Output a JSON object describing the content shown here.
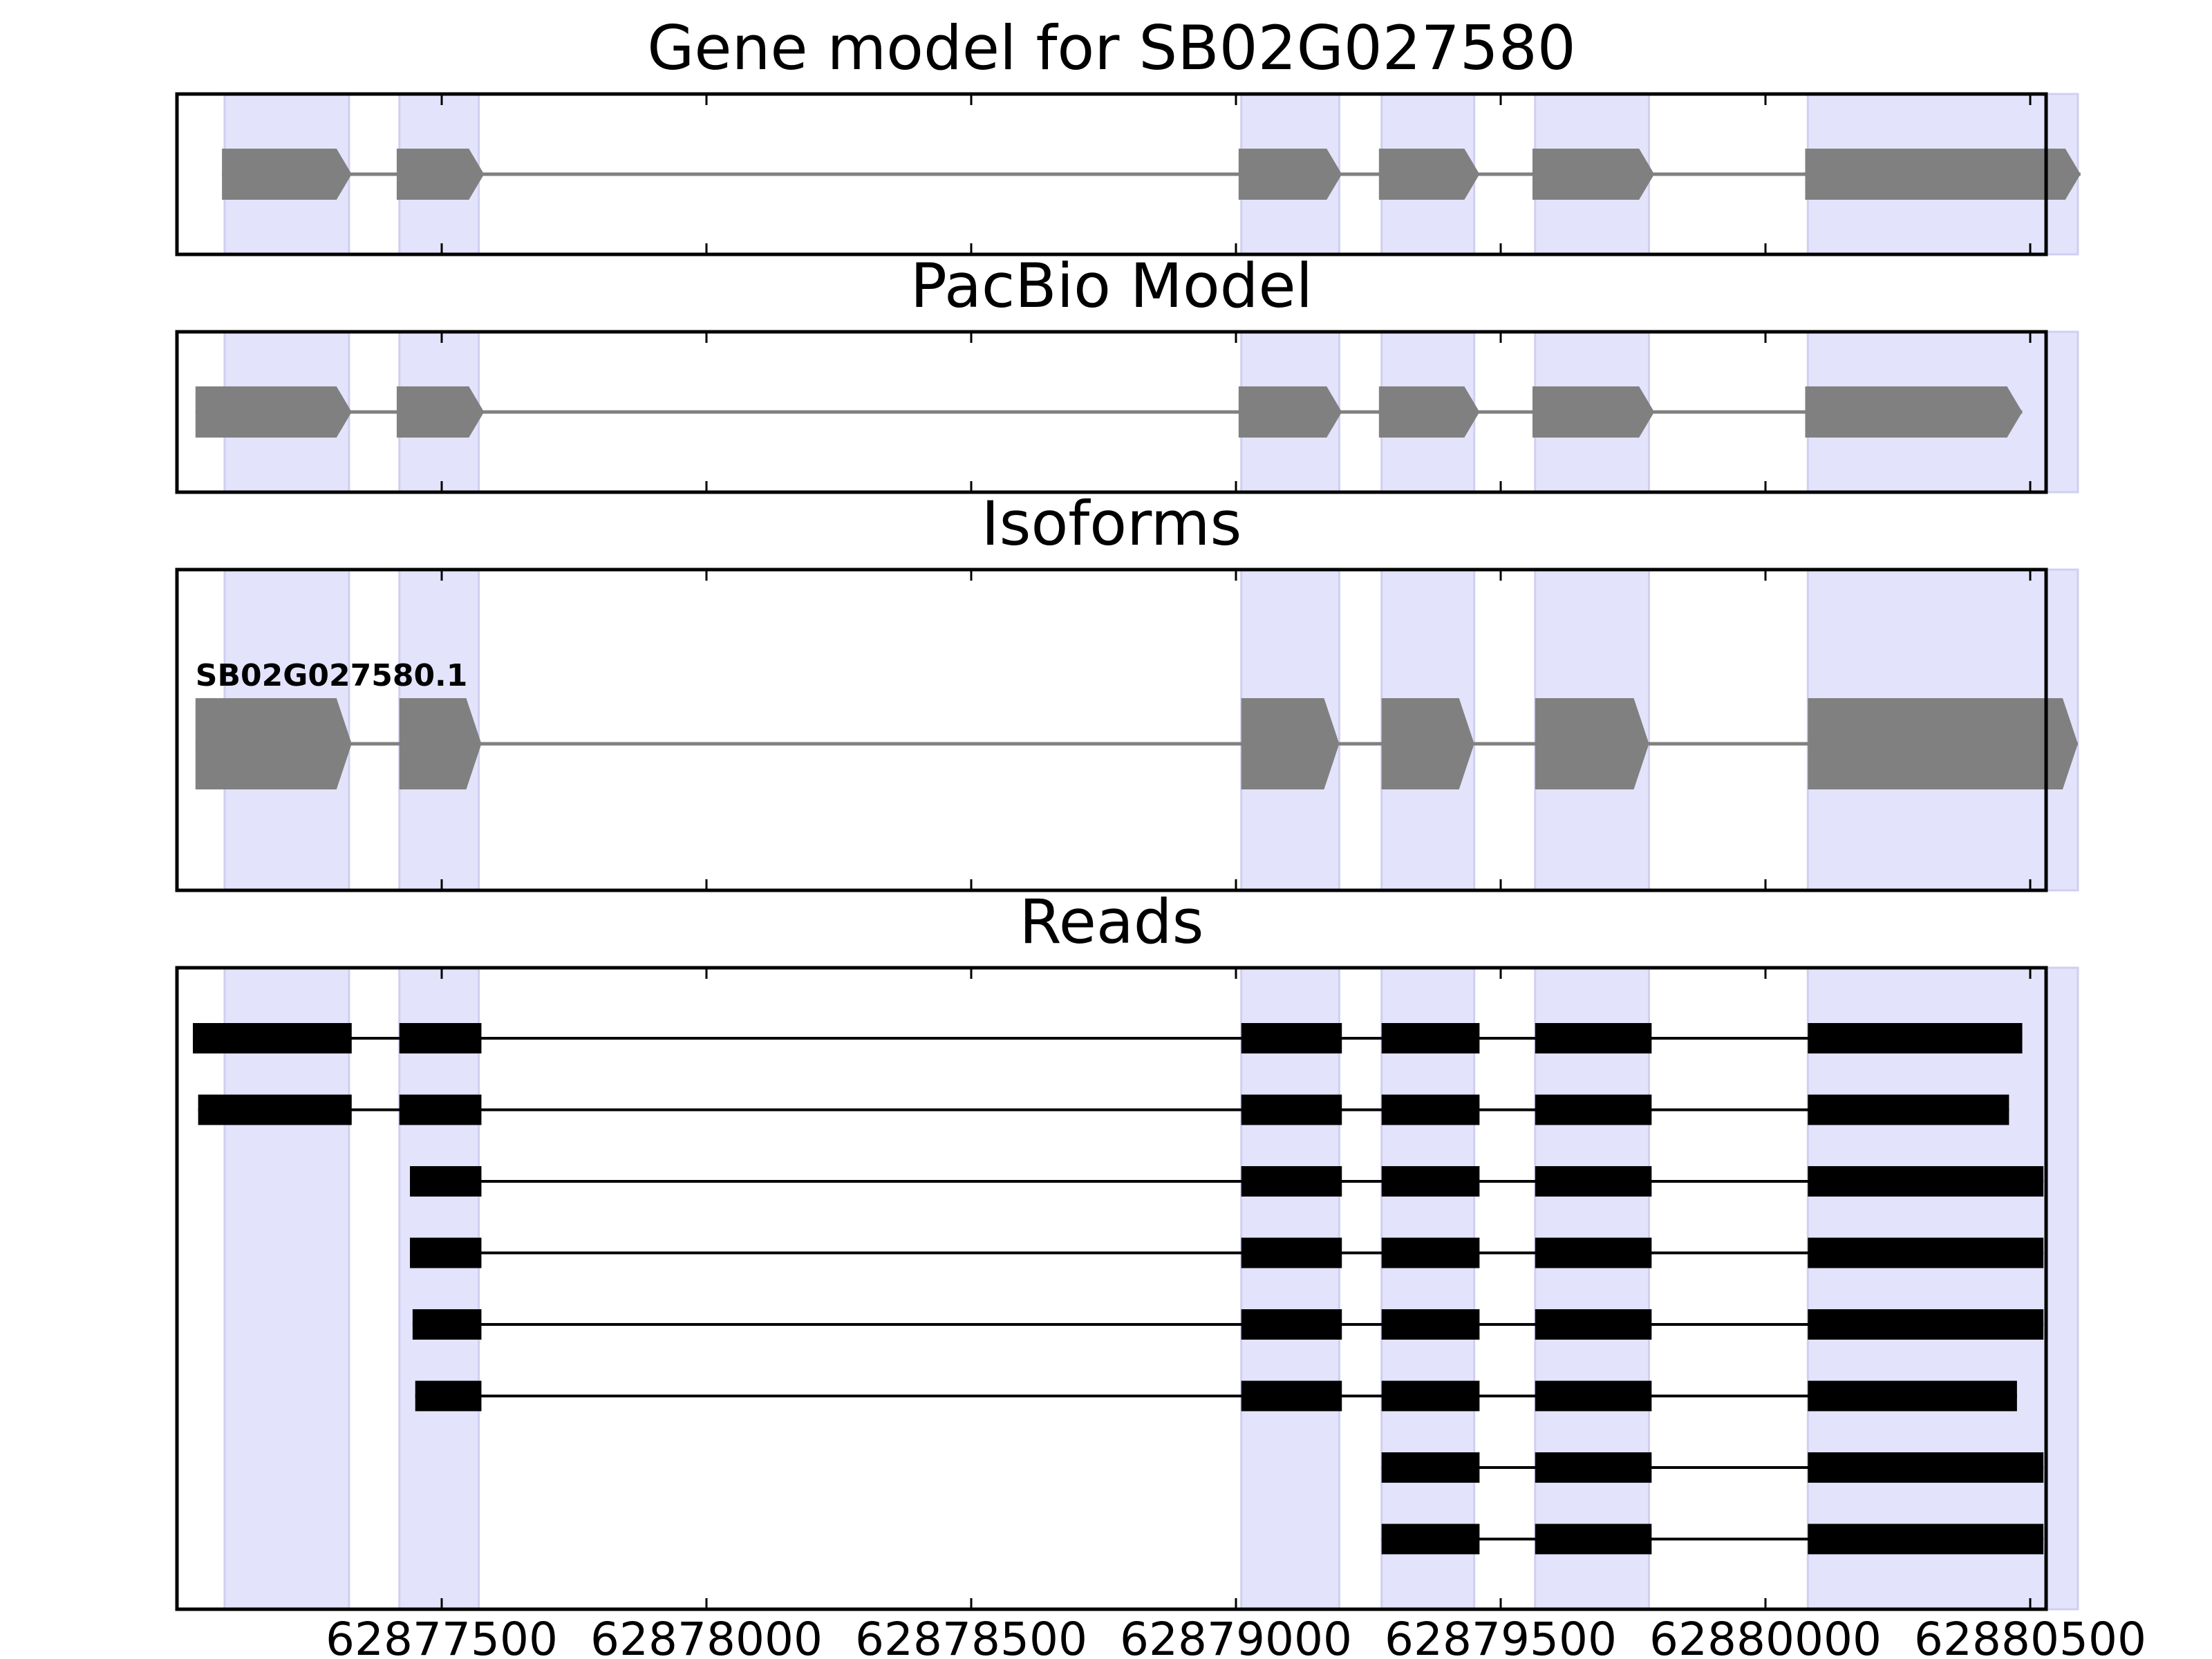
{
  "chart_data": {
    "type": "gene-track",
    "x_axis": {
      "xlim": [
        62877000,
        62880530
      ],
      "ticks": [
        62877500,
        62878000,
        62878500,
        62879000,
        62879500,
        62880000,
        62880500
      ],
      "tick_labels": [
        "62877500",
        "62878000",
        "62878500",
        "62879000",
        "62879500",
        "62880000",
        "62880500"
      ]
    },
    "exon_highlight_color": "#e3e3fc",
    "exon_highlights": [
      [
        62877090,
        62877325
      ],
      [
        62877420,
        62877570
      ],
      [
        62879010,
        62879195
      ],
      [
        62879275,
        62879450
      ],
      [
        62879565,
        62879780
      ],
      [
        62880080,
        62880590
      ]
    ],
    "panels": [
      {
        "title": "Gene model for SB02G027580",
        "color": "#808080",
        "models": [
          {
            "label": "",
            "exons": [
              [
                62877085,
                62877330
              ],
              [
                62877415,
                62877580
              ],
              [
                62879005,
                62879200
              ],
              [
                62879270,
                62879460
              ],
              [
                62879560,
                62879790
              ],
              [
                62880075,
                62880595
              ]
            ]
          }
        ]
      },
      {
        "title": "PacBio Model",
        "color": "#808080",
        "models": [
          {
            "label": "",
            "exons": [
              [
                62877035,
                62877330
              ],
              [
                62877415,
                62877580
              ],
              [
                62879005,
                62879200
              ],
              [
                62879270,
                62879460
              ],
              [
                62879560,
                62879790
              ],
              [
                62880075,
                62880485
              ]
            ]
          }
        ]
      },
      {
        "title": "Isoforms",
        "color": "#808080",
        "models": [
          {
            "label": "SB02G027580.1",
            "exons": [
              [
                62877035,
                62877330
              ],
              [
                62877420,
                62877575
              ],
              [
                62879010,
                62879195
              ],
              [
                62879275,
                62879450
              ],
              [
                62879565,
                62879780
              ],
              [
                62880080,
                62880590
              ]
            ]
          }
        ]
      },
      {
        "title": "Reads",
        "color": "#000000",
        "reads": [
          [
            [
              62877030,
              62877330
            ],
            [
              62877420,
              62877575
            ],
            [
              62879010,
              62879200
            ],
            [
              62879275,
              62879460
            ],
            [
              62879565,
              62879785
            ],
            [
              62880080,
              62880485
            ]
          ],
          [
            [
              62877040,
              62877330
            ],
            [
              62877420,
              62877575
            ],
            [
              62879010,
              62879200
            ],
            [
              62879275,
              62879460
            ],
            [
              62879565,
              62879785
            ],
            [
              62880080,
              62880460
            ]
          ],
          [
            [
              62877440,
              62877575
            ],
            [
              62879010,
              62879200
            ],
            [
              62879275,
              62879460
            ],
            [
              62879565,
              62879785
            ],
            [
              62880080,
              62880525
            ]
          ],
          [
            [
              62877440,
              62877575
            ],
            [
              62879010,
              62879200
            ],
            [
              62879275,
              62879460
            ],
            [
              62879565,
              62879785
            ],
            [
              62880080,
              62880525
            ]
          ],
          [
            [
              62877445,
              62877575
            ],
            [
              62879010,
              62879200
            ],
            [
              62879275,
              62879460
            ],
            [
              62879565,
              62879785
            ],
            [
              62880080,
              62880525
            ]
          ],
          [
            [
              62877450,
              62877575
            ],
            [
              62879010,
              62879200
            ],
            [
              62879275,
              62879460
            ],
            [
              62879565,
              62879785
            ],
            [
              62880080,
              62880475
            ]
          ],
          [
            [
              62879275,
              62879460
            ],
            [
              62879565,
              62879785
            ],
            [
              62880080,
              62880525
            ]
          ],
          [
            [
              62879275,
              62879460
            ],
            [
              62879565,
              62879785
            ],
            [
              62880080,
              62880525
            ]
          ]
        ]
      }
    ]
  }
}
